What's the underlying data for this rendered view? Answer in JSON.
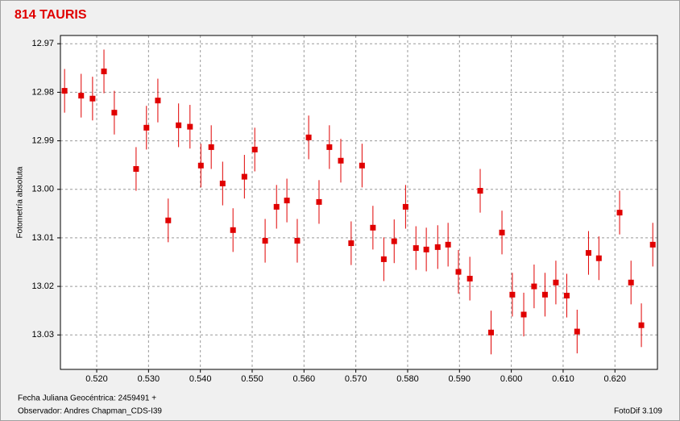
{
  "chart_data": {
    "type": "scatter",
    "title": "814  TAURIS",
    "y_label": "Fotometría absoluta",
    "x_label": "Fecha Juliana Geocéntrica: 2459491 +",
    "observer": "Observador: Andres Chapman_CDS-I39",
    "software": "FotoDif 3.109",
    "xlim": [
      0.513,
      0.6282
    ],
    "ylim": [
      12.9683,
      13.0371
    ],
    "y_inverted": true,
    "grid": true,
    "xticks": [
      {
        "value": 0.52,
        "label": "0.520"
      },
      {
        "value": 0.53,
        "label": "0.530"
      },
      {
        "value": 0.54,
        "label": "0.540"
      },
      {
        "value": 0.55,
        "label": "0.550"
      },
      {
        "value": 0.56,
        "label": "0.560"
      },
      {
        "value": 0.57,
        "label": "0.570"
      },
      {
        "value": 0.58,
        "label": "0.580"
      },
      {
        "value": 0.59,
        "label": "0.590"
      },
      {
        "value": 0.6,
        "label": "0.600"
      },
      {
        "value": 0.61,
        "label": "0.610"
      },
      {
        "value": 0.62,
        "label": "0.620"
      }
    ],
    "yticks": [
      12.97,
      12.98,
      12.99,
      {
        "value": 13,
        "label": "13.00"
      },
      13.01,
      13.02,
      13.03
    ],
    "yerr": 0.0045,
    "series": [
      {
        "color": "#e00000",
        "x": [
          0.5138,
          0.517,
          0.5192,
          0.5214,
          0.5234,
          0.5276,
          0.5296,
          0.5318,
          0.5338,
          0.5358,
          0.538,
          0.5401,
          0.5421,
          0.5443,
          0.5463,
          0.5485,
          0.5505,
          0.5525,
          0.5547,
          0.5567,
          0.5587,
          0.5609,
          0.5629,
          0.5649,
          0.5671,
          0.5691,
          0.5712,
          0.5733,
          0.5754,
          0.5774,
          0.5796,
          0.5816,
          0.5836,
          0.5858,
          0.5878,
          0.5898,
          0.592,
          0.594,
          0.5961,
          0.5982,
          0.6002,
          0.6024,
          0.6044,
          0.6065,
          0.6086,
          0.6107,
          0.6127,
          0.6149,
          0.6169,
          0.6209,
          0.6231,
          0.6251,
          0.6273
        ],
        "values": [
          12.9797,
          12.9807,
          12.9813,
          12.9757,
          12.9842,
          12.9958,
          12.9873,
          12.9817,
          13.0064,
          12.9868,
          12.9871,
          12.9951,
          12.9913,
          12.9988,
          13.0084,
          12.9974,
          12.9918,
          13.0106,
          13.0036,
          13.0023,
          13.0106,
          12.9893,
          13.0026,
          12.9913,
          12.9941,
          13.0111,
          12.9951,
          13.0079,
          13.0144,
          13.0107,
          13.0036,
          13.0121,
          13.0124,
          13.0119,
          13.0114,
          13.017,
          13.0184,
          13.0003,
          13.0295,
          13.0089,
          13.0217,
          13.0258,
          13.02,
          13.0217,
          13.0192,
          13.0219,
          13.0293,
          13.0131,
          13.0142,
          13.0048,
          13.0192,
          13.028,
          13.0114
        ]
      }
    ]
  }
}
